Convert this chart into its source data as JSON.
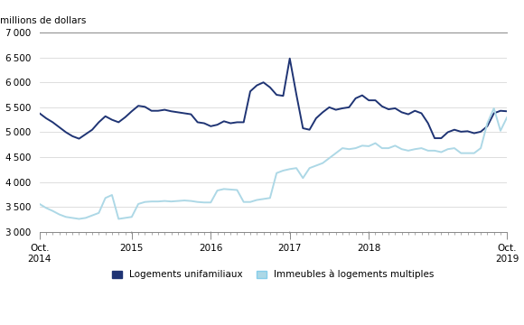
{
  "ylabel": "millions de dollars",
  "ylim": [
    3000,
    7000
  ],
  "yticks": [
    3000,
    3500,
    4000,
    4500,
    5000,
    5500,
    6000,
    6500,
    7000
  ],
  "color_unifamilial": "#1F3474",
  "color_multiple": "#ADD8E6",
  "legend_unifamilial": "Logements unifamiliaux",
  "legend_multiple": "Immeubles à logements multiples",
  "unifamilial": [
    5380,
    5280,
    5200,
    5100,
    5000,
    4920,
    4870,
    4960,
    5050,
    5200,
    5320,
    5250,
    5200,
    5300,
    5420,
    5530,
    5510,
    5430,
    5430,
    5450,
    5420,
    5400,
    5380,
    5360,
    5200,
    5180,
    5120,
    5150,
    5220,
    5180,
    5200,
    5200,
    5820,
    5940,
    6000,
    5900,
    5750,
    5730,
    6480,
    5760,
    5080,
    5050,
    5280,
    5400,
    5500,
    5450,
    5480,
    5500,
    5680,
    5740,
    5640,
    5640,
    5520,
    5460,
    5480,
    5400,
    5360,
    5430,
    5380,
    5180,
    4880,
    4880,
    5000,
    5050,
    5010,
    5020,
    4980,
    5010,
    5120,
    5380,
    5430,
    5420
  ],
  "multiple": [
    3560,
    3480,
    3420,
    3350,
    3300,
    3280,
    3260,
    3280,
    3330,
    3380,
    3680,
    3740,
    3260,
    3280,
    3300,
    3560,
    3600,
    3610,
    3610,
    3620,
    3610,
    3620,
    3630,
    3620,
    3600,
    3590,
    3590,
    3830,
    3860,
    3850,
    3840,
    3600,
    3600,
    3640,
    3660,
    3680,
    4180,
    4230,
    4260,
    4280,
    4080,
    4280,
    4330,
    4380,
    4480,
    4580,
    4680,
    4660,
    4680,
    4730,
    4720,
    4780,
    4680,
    4680,
    4730,
    4660,
    4630,
    4660,
    4680,
    4630,
    4630,
    4600,
    4660,
    4680,
    4580,
    4580,
    4580,
    4680,
    5180,
    5480,
    5030,
    5300
  ],
  "n_months": 72,
  "xtick_major_positions": [
    0,
    14,
    26,
    38,
    50,
    71
  ],
  "xtick_major_labels": [
    "Oct.\n2014",
    "2015",
    "2016",
    "2017",
    "2018",
    "Oct.\n2019"
  ],
  "figsize": [
    5.8,
    3.6
  ],
  "dpi": 100,
  "background_color": "#ffffff"
}
